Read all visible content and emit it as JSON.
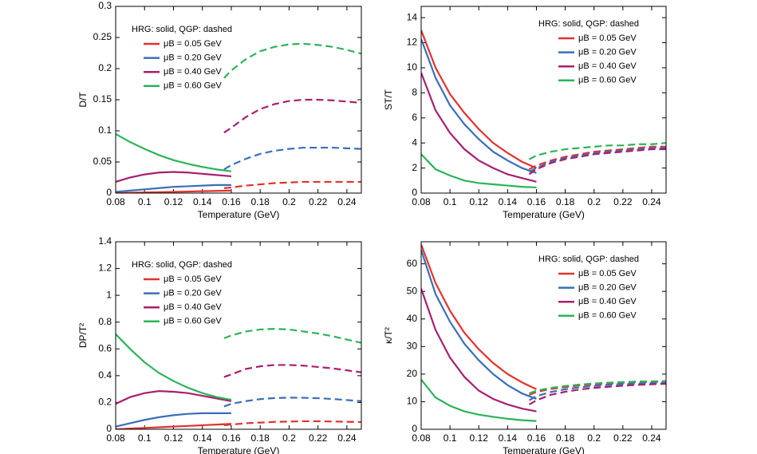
{
  "chart_data": [
    {
      "type": "line",
      "ylabel": "D/T",
      "xlabel": "Temperature (GeV)",
      "legend_title": "HRG: solid, QGP: dashed",
      "legend": "upper left",
      "xlim": [
        0.08,
        0.25
      ],
      "xticks": [
        0.08,
        0.1,
        0.12,
        0.14,
        0.16,
        0.18,
        0.2,
        0.22,
        0.24
      ],
      "ylim": [
        0,
        0.3
      ],
      "yticks": [
        0,
        0.05,
        0.1,
        0.15,
        0.2,
        0.25,
        0.3
      ],
      "x_hrg": [
        0.08,
        0.09,
        0.1,
        0.11,
        0.12,
        0.13,
        0.14,
        0.15,
        0.16
      ],
      "x_qgp": [
        0.155,
        0.16,
        0.17,
        0.18,
        0.19,
        0.2,
        0.21,
        0.22,
        0.23,
        0.24,
        0.25
      ],
      "series": [
        {
          "name": "μB = 0.05 GeV",
          "color": "#e0332f",
          "values": [
            0,
            0.0005,
            0.001,
            0.0015,
            0.002,
            0.0025,
            0.003,
            0.0035,
            0.004
          ],
          "qgp_values": [
            0.008,
            0.009,
            0.012,
            0.014,
            0.016,
            0.017,
            0.018,
            0.018,
            0.018,
            0.018,
            0.018
          ]
        },
        {
          "name": "μB = 0.20 GeV",
          "color": "#3a6fb8",
          "values": [
            0.002,
            0.004,
            0.006,
            0.008,
            0.01,
            0.011,
            0.012,
            0.013,
            0.013
          ],
          "qgp_values": [
            0.038,
            0.045,
            0.055,
            0.063,
            0.068,
            0.071,
            0.073,
            0.073,
            0.073,
            0.072,
            0.071
          ]
        },
        {
          "name": "μB = 0.40 GeV",
          "color": "#a8206f",
          "values": [
            0.018,
            0.025,
            0.03,
            0.033,
            0.034,
            0.033,
            0.031,
            0.029,
            0.027
          ],
          "qgp_values": [
            0.097,
            0.105,
            0.122,
            0.135,
            0.143,
            0.148,
            0.15,
            0.15,
            0.149,
            0.147,
            0.145
          ]
        },
        {
          "name": "μB = 0.60 GeV",
          "color": "#2db35a",
          "values": [
            0.095,
            0.082,
            0.071,
            0.061,
            0.053,
            0.047,
            0.042,
            0.038,
            0.035
          ],
          "qgp_values": [
            0.185,
            0.197,
            0.215,
            0.228,
            0.235,
            0.239,
            0.24,
            0.238,
            0.235,
            0.23,
            0.224
          ]
        }
      ]
    },
    {
      "type": "line",
      "ylabel": "ST/T",
      "xlabel": "Temperature (GeV)",
      "legend_title": "HRG: solid, QGP: dashed",
      "legend": "upper right",
      "xlim": [
        0.08,
        0.25
      ],
      "xticks": [
        0.08,
        0.1,
        0.12,
        0.14,
        0.16,
        0.18,
        0.2,
        0.22,
        0.24
      ],
      "ylim": [
        0,
        14.9
      ],
      "yticks": [
        0,
        2,
        4,
        6,
        8,
        10,
        12,
        14
      ],
      "x_hrg": [
        0.08,
        0.09,
        0.1,
        0.11,
        0.12,
        0.13,
        0.14,
        0.15,
        0.16
      ],
      "x_qgp": [
        0.155,
        0.16,
        0.17,
        0.18,
        0.19,
        0.2,
        0.21,
        0.22,
        0.23,
        0.24,
        0.25
      ],
      "series": [
        {
          "name": "μB = 0.05 GeV",
          "color": "#e0332f",
          "values": [
            13,
            10,
            7.9,
            6.4,
            5.1,
            4.0,
            3.2,
            2.5,
            2.0
          ],
          "qgp_values": [
            1.9,
            2.2,
            2.6,
            2.9,
            3.1,
            3.3,
            3.4,
            3.5,
            3.6,
            3.7,
            3.7
          ]
        },
        {
          "name": "μB = 0.20 GeV",
          "color": "#3a6fb8",
          "values": [
            12.3,
            9.2,
            7.0,
            5.5,
            4.3,
            3.3,
            2.6,
            2.0,
            1.6
          ],
          "qgp_values": [
            1.7,
            2.0,
            2.5,
            2.8,
            3.0,
            3.2,
            3.3,
            3.4,
            3.5,
            3.6,
            3.6
          ]
        },
        {
          "name": "μB = 0.40 GeV",
          "color": "#a8206f",
          "values": [
            9.6,
            6.6,
            4.8,
            3.5,
            2.6,
            2.0,
            1.5,
            1.2,
            0.9
          ],
          "qgp_values": [
            1.5,
            1.9,
            2.4,
            2.7,
            2.9,
            3.1,
            3.2,
            3.3,
            3.4,
            3.5,
            3.5
          ]
        },
        {
          "name": "μB = 0.60 GeV",
          "color": "#2db35a",
          "values": [
            3.1,
            1.9,
            1.4,
            1.0,
            0.8,
            0.7,
            0.6,
            0.5,
            0.45
          ],
          "qgp_values": [
            2.7,
            3.0,
            3.3,
            3.5,
            3.6,
            3.7,
            3.8,
            3.8,
            3.9,
            3.9,
            4.0
          ]
        }
      ]
    },
    {
      "type": "line",
      "ylabel": "DP/T²",
      "xlabel": "Temperature (GeV)",
      "legend_title": "HRG: solid, QGP: dashed",
      "legend": "upper left",
      "xlim": [
        0.08,
        0.25
      ],
      "xticks": [
        0.08,
        0.1,
        0.12,
        0.14,
        0.16,
        0.18,
        0.2,
        0.22,
        0.24
      ],
      "ylim": [
        0,
        1.4
      ],
      "yticks": [
        0,
        0.2,
        0.4,
        0.6,
        0.8,
        1,
        1.2,
        1.4
      ],
      "x_hrg": [
        0.08,
        0.09,
        0.1,
        0.11,
        0.12,
        0.13,
        0.14,
        0.15,
        0.16
      ],
      "x_qgp": [
        0.155,
        0.16,
        0.17,
        0.18,
        0.19,
        0.2,
        0.21,
        0.22,
        0.23,
        0.24,
        0.25
      ],
      "series": [
        {
          "name": "μB = 0.05 GeV",
          "color": "#e0332f",
          "values": [
            0,
            0.005,
            0.01,
            0.015,
            0.02,
            0.025,
            0.03,
            0.035,
            0.04
          ],
          "qgp_values": [
            0.03,
            0.035,
            0.045,
            0.05,
            0.055,
            0.058,
            0.06,
            0.06,
            0.058,
            0.056,
            0.054
          ]
        },
        {
          "name": "μB = 0.20 GeV",
          "color": "#3a6fb8",
          "values": [
            0.02,
            0.045,
            0.07,
            0.09,
            0.105,
            0.115,
            0.12,
            0.12,
            0.12
          ],
          "qgp_values": [
            0.17,
            0.19,
            0.21,
            0.225,
            0.233,
            0.236,
            0.235,
            0.232,
            0.226,
            0.218,
            0.21
          ]
        },
        {
          "name": "μB = 0.40 GeV",
          "color": "#a8206f",
          "values": [
            0.19,
            0.24,
            0.27,
            0.285,
            0.28,
            0.27,
            0.25,
            0.23,
            0.21
          ],
          "qgp_values": [
            0.39,
            0.41,
            0.45,
            0.47,
            0.48,
            0.48,
            0.475,
            0.465,
            0.455,
            0.44,
            0.425
          ]
        },
        {
          "name": "μB = 0.60 GeV",
          "color": "#2db35a",
          "values": [
            0.71,
            0.6,
            0.5,
            0.42,
            0.36,
            0.31,
            0.27,
            0.24,
            0.22
          ],
          "qgp_values": [
            0.68,
            0.7,
            0.73,
            0.745,
            0.75,
            0.745,
            0.73,
            0.715,
            0.695,
            0.67,
            0.645
          ]
        }
      ]
    },
    {
      "type": "line",
      "ylabel": "κ/T²",
      "xlabel": "Temperature (GeV)",
      "legend_title": "HRG: solid, QGP: dashed",
      "legend": "upper right",
      "xlim": [
        0.08,
        0.25
      ],
      "xticks": [
        0.08,
        0.1,
        0.12,
        0.14,
        0.16,
        0.18,
        0.2,
        0.22,
        0.24
      ],
      "ylim": [
        0,
        68
      ],
      "yticks": [
        0,
        10,
        20,
        30,
        40,
        50,
        60
      ],
      "x_hrg": [
        0.08,
        0.09,
        0.1,
        0.11,
        0.12,
        0.13,
        0.14,
        0.15,
        0.16
      ],
      "x_qgp": [
        0.155,
        0.16,
        0.17,
        0.18,
        0.19,
        0.2,
        0.21,
        0.22,
        0.23,
        0.24,
        0.25
      ],
      "series": [
        {
          "name": "μB = 0.05 GeV",
          "color": "#e0332f",
          "values": [
            67,
            53,
            43,
            35,
            29,
            24,
            20,
            17,
            14.5
          ],
          "qgp_values": [
            12.5,
            13.5,
            14.6,
            15.3,
            15.9,
            16.3,
            16.6,
            16.9,
            17.1,
            17.2,
            17.3
          ]
        },
        {
          "name": "μB = 0.20 GeV",
          "color": "#3a6fb8",
          "values": [
            65,
            49,
            39,
            31,
            25,
            20,
            16,
            13,
            11
          ],
          "qgp_values": [
            10.5,
            12,
            13.5,
            14.5,
            15.2,
            15.7,
            16.1,
            16.4,
            16.6,
            16.8,
            17
          ]
        },
        {
          "name": "μB = 0.40 GeV",
          "color": "#a8206f",
          "values": [
            51,
            36,
            26,
            19,
            14,
            11,
            9,
            7.5,
            6.5
          ],
          "qgp_values": [
            9,
            10.5,
            12.5,
            13.6,
            14.4,
            15,
            15.4,
            15.8,
            16.1,
            16.3,
            16.5
          ]
        },
        {
          "name": "μB = 0.60 GeV",
          "color": "#2db35a",
          "values": [
            18,
            11.5,
            8.5,
            6.5,
            5.3,
            4.5,
            3.8,
            3.3,
            3
          ],
          "qgp_values": [
            13,
            14,
            15,
            15.7,
            16.2,
            16.6,
            16.9,
            17.1,
            17.3,
            17.4,
            17.5
          ]
        }
      ]
    }
  ]
}
